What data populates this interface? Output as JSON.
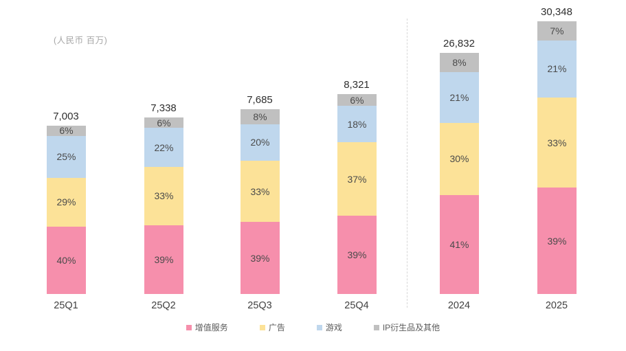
{
  "chart_data": {
    "type": "bar",
    "stacked": true,
    "title": "",
    "unit_label": "(人民币 百万)",
    "legend_position": "bottom",
    "grid": false,
    "categories": [
      "25Q1",
      "25Q2",
      "25Q3",
      "25Q4",
      "2024",
      "2025"
    ],
    "category_groups": [
      "quarterly",
      "quarterly",
      "quarterly",
      "quarterly",
      "annual",
      "annual"
    ],
    "separator_after_category": "25Q4",
    "totals": [
      7003,
      7338,
      7685,
      8321,
      26832,
      30348
    ],
    "total_labels": [
      "7,003",
      "7,338",
      "7,685",
      "8,321",
      "26,832",
      "30,348"
    ],
    "series": [
      {
        "name": "增值服务",
        "color": "#f68fac",
        "pct": [
          40,
          39,
          39,
          39,
          41,
          39
        ]
      },
      {
        "name": "广告",
        "color": "#fce298",
        "pct": [
          29,
          33,
          33,
          37,
          30,
          33
        ]
      },
      {
        "name": "游戏",
        "color": "#bfd7ed",
        "pct": [
          25,
          22,
          20,
          18,
          21,
          21
        ]
      },
      {
        "name": "IP衍生品及其他",
        "color": "#c0c0c0",
        "pct": [
          6,
          6,
          8,
          6,
          8,
          7
        ]
      }
    ]
  },
  "colors": {
    "segment_text": "#4a4a4a",
    "total_text": "#2e2e2e",
    "axis_text": "#404040",
    "unit_text": "#a6a6a6",
    "legend_text": "#595959",
    "separator": "#d7d7d7",
    "background": "#ffffff"
  }
}
